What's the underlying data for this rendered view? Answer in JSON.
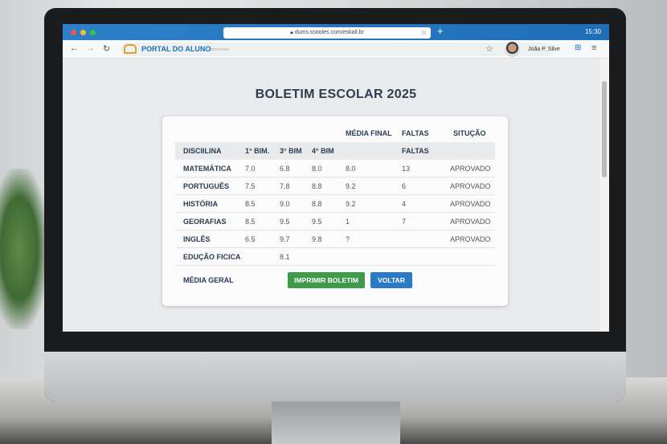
{
  "browser": {
    "url": "dums.ssooles.com/eskall.br",
    "time": "15:30",
    "tab_colors": [
      "#ee5a52",
      "#f5bd2f",
      "#3fc14a"
    ]
  },
  "toolbar": {
    "brand": "PORTAL DO ALUNO",
    "brand_sub": "bcrceeses",
    "user": "Joãa P. Silve"
  },
  "page": {
    "title": "BOLETIM ESCOLAR 2025"
  },
  "table": {
    "top_headers": [
      "MÉDIA FINAL",
      "FALTAS",
      "SITUÇÃO"
    ],
    "headers": [
      "DISCIILINA",
      "1° BIM.",
      "3° BIM",
      "4° BIM",
      "",
      "FALTAS",
      ""
    ],
    "rows": [
      [
        "MATEMÁTICA",
        "7.0",
        "6.8",
        "8.0",
        "8.0",
        "13",
        "APROVADO"
      ],
      [
        "PORTUGUÊS",
        "7.5",
        "7.8",
        "8.8",
        "9.2",
        "6",
        "APROVADO"
      ],
      [
        "HISTÓRIA",
        "8.5",
        "9.0",
        "8.8",
        "9.2",
        "4",
        "APROVADO"
      ],
      [
        "GEORAFIAS",
        "8.5",
        "9.5",
        "9.5",
        "1",
        "7",
        "APROVADO"
      ],
      [
        "INGLÊS",
        "6.5",
        "9.7",
        "9.8",
        "?",
        "",
        "APROVADO"
      ],
      [
        "EDUÇÃO FICICA",
        "",
        "8.1",
        "",
        "",
        "",
        ""
      ]
    ],
    "footer_label": "MÉDIA GERAL"
  },
  "buttons": {
    "print": "IMPRIMIR BOLETIM",
    "back": "VOLTAR"
  }
}
